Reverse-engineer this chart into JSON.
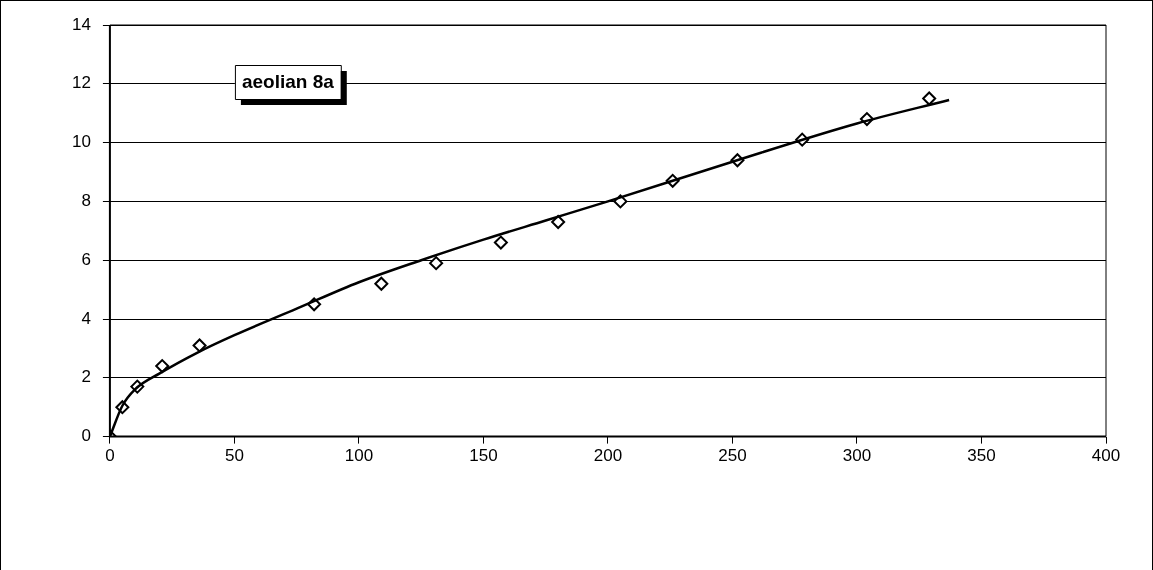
{
  "chart_data": {
    "type": "scatter",
    "title": "aeolian 8a",
    "xlim": [
      0,
      400
    ],
    "xticks": [
      0,
      50,
      100,
      150,
      200,
      250,
      300,
      350,
      400
    ],
    "ylim": [
      0,
      14
    ],
    "yticks": [
      0,
      2,
      4,
      6,
      8,
      10,
      12,
      14
    ],
    "grid": "y",
    "legend": false,
    "series": [
      {
        "type": "scatter",
        "color": "#000000",
        "marker": "diamond",
        "x": [
          0,
          5,
          11,
          21,
          36,
          82,
          109,
          131,
          157,
          180,
          205,
          226,
          252,
          278,
          304,
          329
        ],
        "values": [
          0,
          1.0,
          1.7,
          2.4,
          3.1,
          4.5,
          5.2,
          5.9,
          6.6,
          7.3,
          8.0,
          8.7,
          9.4,
          10.1,
          10.8,
          11.5
        ]
      },
      {
        "type": "line",
        "color": "#000000",
        "marker": "none",
        "x": [
          0,
          5,
          10,
          20,
          35,
          50,
          75,
          100,
          125,
          150,
          175,
          200,
          250,
          300,
          337
        ],
        "values": [
          0,
          1.05,
          1.6,
          2.15,
          2.85,
          3.45,
          4.35,
          5.25,
          6.0,
          6.7,
          7.35,
          8.0,
          9.35,
          10.65,
          11.45
        ]
      }
    ]
  }
}
